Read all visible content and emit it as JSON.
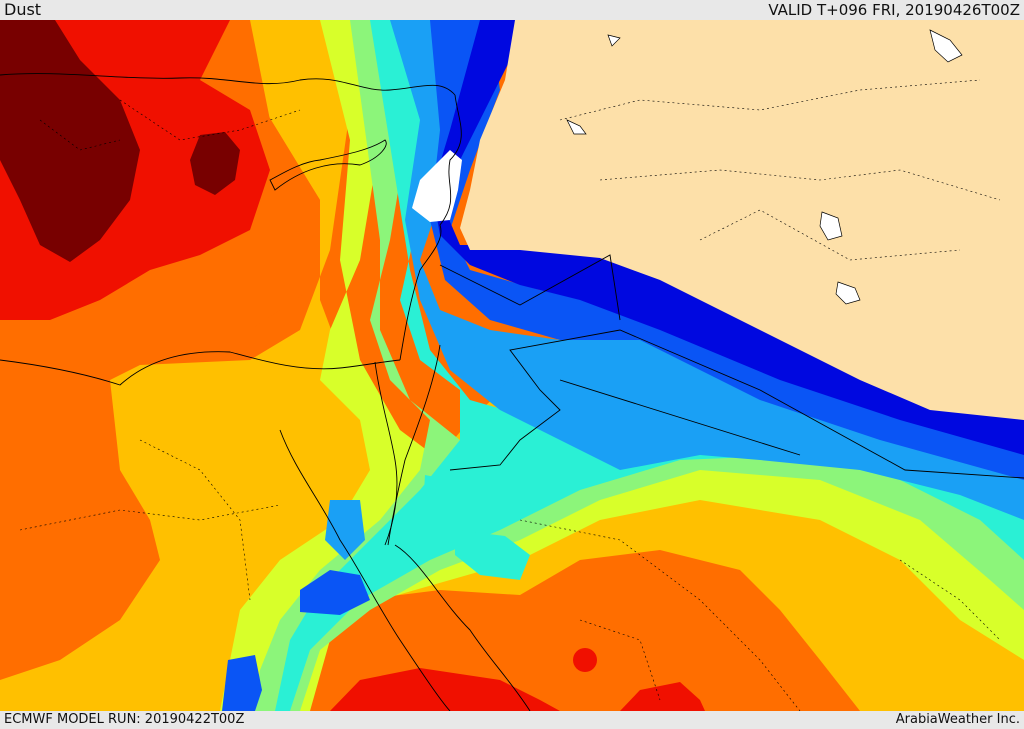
{
  "header": {
    "product": "Dust",
    "valid": "VALID T+096 FRI, 20190426T00Z"
  },
  "footer": {
    "model_run": "ECMWF MODEL RUN: 20190422T00Z",
    "credit": "ArabiaWeather Inc."
  },
  "palette": {
    "land": "#fde0a9",
    "white": "#ffffff",
    "darkblue": "#0008e0",
    "blue": "#0a55f5",
    "dodger": "#1aa0f5",
    "cyan": "#2af0d5",
    "lightgreen": "#8cf57a",
    "lime": "#d8ff2a",
    "yellow": "#ffc000",
    "orange": "#ff6e00",
    "red": "#f01000",
    "maroon": "#780000"
  }
}
